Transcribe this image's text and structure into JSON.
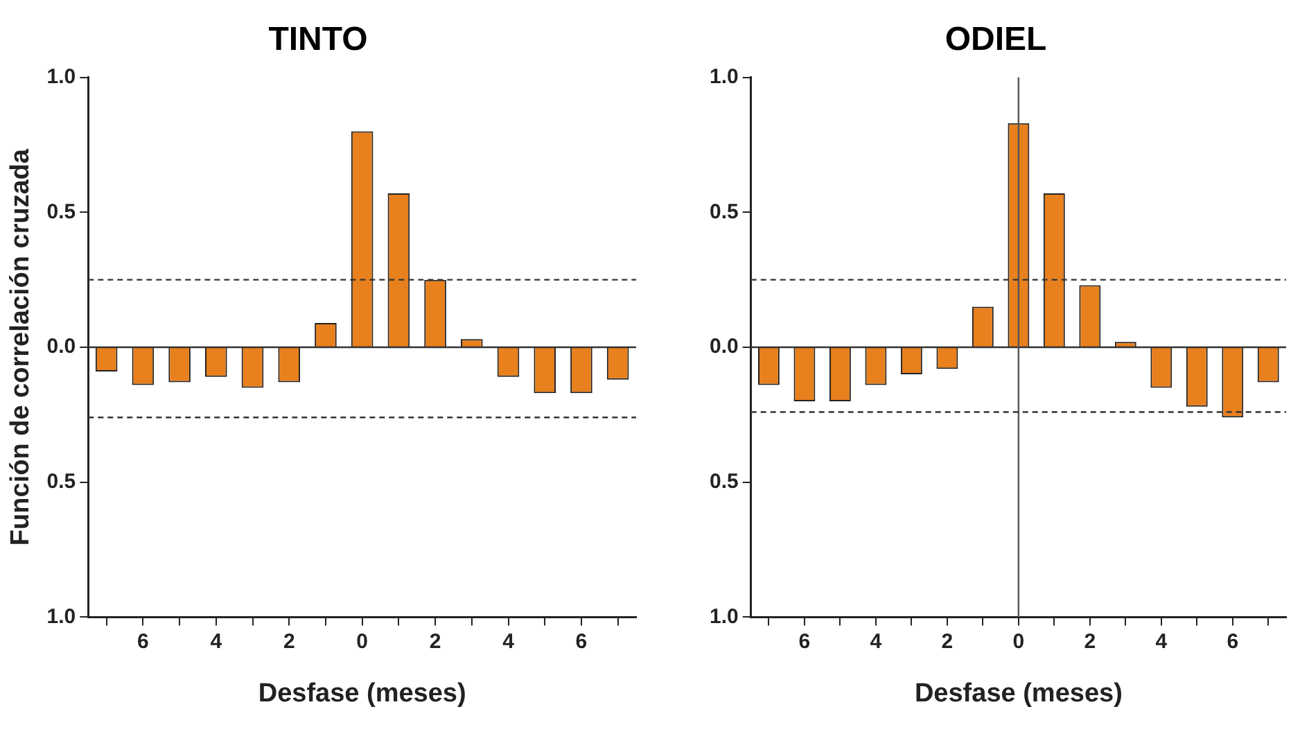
{
  "chart_data": [
    {
      "type": "bar",
      "title": "TINTO",
      "xlabel": "Desfase (meses)",
      "ylabel": "Función de correlación cruzada",
      "categories": [
        null,
        "6",
        null,
        "4",
        null,
        "2",
        null,
        "0",
        null,
        "2",
        null,
        "4",
        null,
        "6",
        null
      ],
      "series": [
        {
          "color": "#e8801e",
          "values": [
            -0.09,
            -0.14,
            -0.13,
            -0.11,
            -0.15,
            -0.13,
            0.09,
            0.8,
            0.57,
            0.25,
            0.03,
            -0.11,
            -0.17,
            -0.17,
            -0.12
          ]
        }
      ],
      "ylim": [
        -1,
        1
      ],
      "yticks": [
        {
          "value": -1,
          "label": "1.0"
        },
        {
          "value": -0.5,
          "label": "0.5"
        },
        {
          "value": 0,
          "label": "0.0"
        },
        0.5,
        {
          "value": 1,
          "label": "1.0"
        }
      ],
      "ref_lines": [
        {
          "axis": "y",
          "value": 0,
          "line_style": "solid",
          "color": "#333333"
        },
        {
          "axis": "y",
          "value": 0.25,
          "line_style": "dashed",
          "color": "#333333"
        },
        {
          "axis": "y",
          "value": -0.26,
          "line_style": "dashed",
          "color": "#333333"
        }
      ],
      "grid": false,
      "legend": false
    },
    {
      "type": "bar",
      "title": "ODIEL",
      "xlabel": "Desfase (meses)",
      "categories": [
        null,
        "6",
        null,
        "4",
        null,
        "2",
        null,
        "0",
        null,
        "2",
        null,
        "4",
        null,
        "6",
        null
      ],
      "series": [
        {
          "color": "#e8801e",
          "values": [
            -0.14,
            -0.2,
            -0.2,
            -0.14,
            -0.1,
            -0.08,
            0.15,
            0.83,
            0.57,
            0.23,
            0.02,
            -0.15,
            -0.22,
            -0.26,
            -0.13
          ]
        }
      ],
      "ylim": [
        -1,
        1
      ],
      "yticks": [
        {
          "value": -1,
          "label": "1.0"
        },
        {
          "value": -0.5,
          "label": "0.5"
        },
        {
          "value": 0,
          "label": "0.0"
        },
        0.5,
        {
          "value": 1,
          "label": "1.0"
        }
      ],
      "ref_lines": [
        {
          "axis": "y",
          "value": 0,
          "line_style": "solid",
          "color": "#333333"
        },
        {
          "axis": "x",
          "value": "0",
          "line_style": "solid",
          "color": "#555555"
        },
        {
          "axis": "y",
          "value": 0.25,
          "line_style": "dashed",
          "color": "#333333"
        },
        {
          "axis": "y",
          "value": -0.24,
          "line_style": "dashed",
          "color": "#333333"
        }
      ],
      "grid": false,
      "legend": false
    }
  ]
}
